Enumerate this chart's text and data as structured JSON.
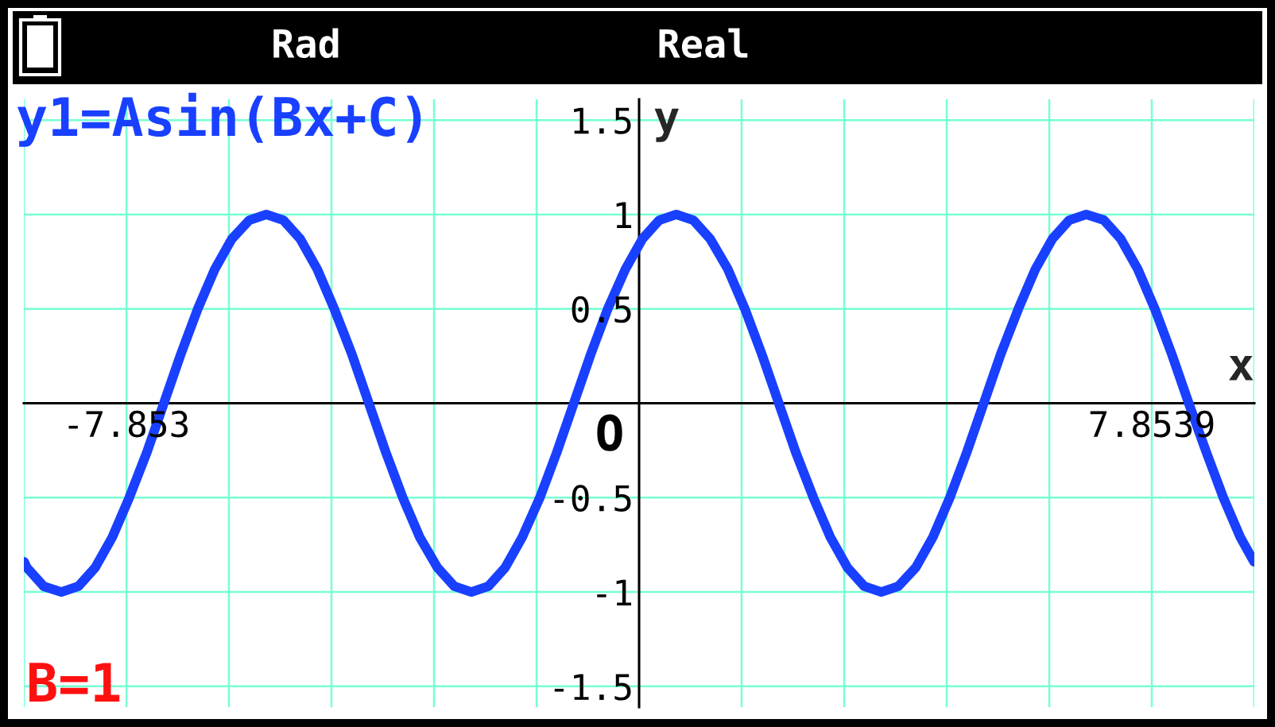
{
  "chart_data": {
    "type": "line",
    "xlabel": "x",
    "ylabel": "y",
    "annotations": [
      "Rad",
      "Real",
      "O",
      "B=1"
    ],
    "xlim": [
      -9.4248,
      9.4248
    ],
    "ylim": [
      -1.61,
      1.61
    ],
    "xticks": [
      {
        "value": -9.4248,
        "label": null
      },
      {
        "value": -7.853,
        "label": "-7.853"
      },
      {
        "value": -6.2832,
        "label": null
      },
      {
        "value": -4.7124,
        "label": null
      },
      {
        "value": -3.1416,
        "label": null
      },
      {
        "value": -1.5708,
        "label": null
      },
      {
        "value": 1.5708,
        "label": null
      },
      {
        "value": 3.1416,
        "label": null
      },
      {
        "value": 4.7124,
        "label": null
      },
      {
        "value": 6.2832,
        "label": null
      },
      {
        "value": 7.8539,
        "label": "7.8539"
      },
      {
        "value": 9.4248,
        "label": null
      }
    ],
    "yticks": [
      -1.5,
      -1,
      -0.5,
      0.5,
      1,
      1.5
    ],
    "grid": true,
    "series": [
      {
        "name": "y1=Asin(Bx+C)",
        "color": "#1940ff",
        "x": [
          -9.42,
          -9.38,
          -9.12,
          -8.85,
          -8.59,
          -8.33,
          -8.07,
          -7.81,
          -7.54,
          -7.28,
          -7.02,
          -6.76,
          -6.5,
          -6.24,
          -5.97,
          -5.71,
          -5.45,
          -5.19,
          -4.93,
          -4.67,
          -4.4,
          -4.14,
          -3.88,
          -3.62,
          -3.36,
          -3.09,
          -2.83,
          -2.57,
          -2.31,
          -2.05,
          -1.79,
          -1.52,
          -1.26,
          -1.0,
          -0.74,
          -0.48,
          -0.21,
          0.05,
          0.31,
          0.57,
          0.83,
          1.09,
          1.36,
          1.62,
          1.88,
          2.14,
          2.4,
          2.67,
          2.93,
          3.19,
          3.45,
          3.71,
          3.97,
          4.24,
          4.5,
          4.76,
          5.02,
          5.28,
          5.54,
          5.81,
          6.07,
          6.33,
          6.59,
          6.85,
          7.12,
          7.38,
          7.64,
          7.9,
          8.16,
          8.42,
          8.69,
          8.95,
          9.21,
          9.42
        ],
        "values": [
          -0.84,
          -0.87,
          -0.97,
          -1,
          -0.97,
          -0.87,
          -0.71,
          -0.5,
          -0.26,
          0,
          0.26,
          0.5,
          0.71,
          0.87,
          0.97,
          1,
          0.97,
          0.87,
          0.71,
          0.5,
          0.26,
          0,
          -0.26,
          -0.5,
          -0.71,
          -0.87,
          -0.97,
          -1,
          -0.97,
          -0.87,
          -0.71,
          -0.5,
          -0.26,
          0,
          0.26,
          0.5,
          0.71,
          0.87,
          0.97,
          1,
          0.97,
          0.87,
          0.71,
          0.5,
          0.26,
          0,
          -0.26,
          -0.5,
          -0.71,
          -0.87,
          -0.97,
          -1,
          -0.97,
          -0.87,
          -0.71,
          -0.5,
          -0.26,
          0,
          0.26,
          0.5,
          0.71,
          0.87,
          0.97,
          1,
          0.97,
          0.87,
          0.71,
          0.5,
          0.26,
          0,
          -0.26,
          -0.5,
          -0.71,
          -0.84
        ]
      }
    ]
  }
}
